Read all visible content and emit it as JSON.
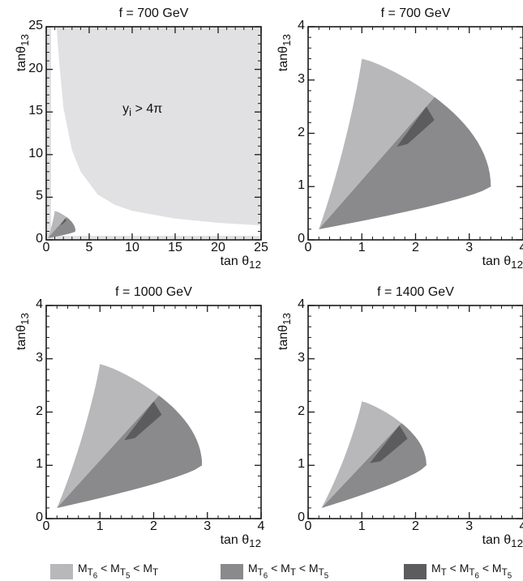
{
  "colors": {
    "light": "#b8b8bb",
    "mid": "#8a8a8d",
    "dark": "#5c5c5f",
    "frame": "#1a1a1a"
  },
  "chart_data": [
    {
      "type": "area",
      "title": "f = 700 GeV",
      "xlabel": "tan θ12",
      "ylabel": "tanθ13",
      "xlim": [
        0,
        25
      ],
      "ylim": [
        0,
        25
      ],
      "xticks": [
        "0",
        "5",
        "10",
        "15",
        "20",
        "25"
      ],
      "yticks": [
        "0",
        "5",
        "10",
        "15",
        "20",
        "25"
      ],
      "annotation": "y_i > 4π",
      "perturbativity_boundary": {
        "x": [
          1.2,
          1.5,
          2,
          3,
          4,
          6,
          8,
          10,
          15,
          20,
          25
        ],
        "y": [
          25,
          21,
          15.5,
          10.5,
          8,
          5.3,
          4.1,
          3.4,
          2.5,
          2.0,
          1.7
        ]
      },
      "region_peak": {
        "x": 1.0,
        "y": 3.4
      },
      "region_xmax": 3.4
    },
    {
      "type": "area",
      "title": "f = 700 GeV",
      "xlabel": "tan θ12",
      "ylabel": "tanθ13",
      "xlim": [
        0,
        4
      ],
      "ylim": [
        0,
        4
      ],
      "xticks": [
        "0",
        "1",
        "2",
        "3",
        "4"
      ],
      "yticks": [
        "0",
        "1",
        "2",
        "3",
        "4"
      ],
      "region_peak": {
        "x": 1.0,
        "y": 3.4
      },
      "region_xmax": 3.4,
      "region_xmin": 0.2,
      "diagonal_split_end": {
        "x": 2.2,
        "y": 2.5
      }
    },
    {
      "type": "area",
      "title": "f = 1000 GeV",
      "xlabel": "tan θ12",
      "ylabel": "tanθ13",
      "xlim": [
        0,
        4
      ],
      "ylim": [
        0,
        4
      ],
      "xticks": [
        "0",
        "1",
        "2",
        "3",
        "4"
      ],
      "yticks": [
        "0",
        "1",
        "2",
        "3",
        "4"
      ],
      "region_peak": {
        "x": 1.0,
        "y": 2.9
      },
      "region_xmax": 2.9,
      "region_xmin": 0.2,
      "diagonal_split_end": {
        "x": 2.0,
        "y": 2.2
      }
    },
    {
      "type": "area",
      "title": "f = 1400 GeV",
      "xlabel": "tan θ12",
      "ylabel": "tanθ13",
      "xlim": [
        0,
        4
      ],
      "ylim": [
        0,
        4
      ],
      "xticks": [
        "0",
        "1",
        "2",
        "3",
        "4"
      ],
      "yticks": [
        "0",
        "1",
        "2",
        "3",
        "4"
      ],
      "region_peak": {
        "x": 1.0,
        "y": 2.2
      },
      "region_xmax": 2.2,
      "region_xmin": 0.25,
      "diagonal_split_end": {
        "x": 1.7,
        "y": 1.75
      }
    }
  ],
  "legend": [
    {
      "label": "M_T6 < M_T5 < M_T",
      "html": "M<sub>T<sub>6</sub></sub> &lt; M<sub>T<sub>5</sub></sub> &lt; M<sub>T</sub>",
      "color": "#b8b8bb"
    },
    {
      "label": "M_T6 < M_T < M_T5",
      "html": "M<sub>T<sub>6</sub></sub> &lt; M<sub>T</sub> &lt; M<sub>T<sub>5</sub></sub>",
      "color": "#8a8a8d"
    },
    {
      "label": "M_T < M_T6 < M_T5",
      "html": "M<sub>T</sub> &lt; M<sub>T<sub>6</sub></sub> &lt; M<sub>T<sub>5</sub></sub>",
      "color": "#5c5c5f"
    }
  ]
}
